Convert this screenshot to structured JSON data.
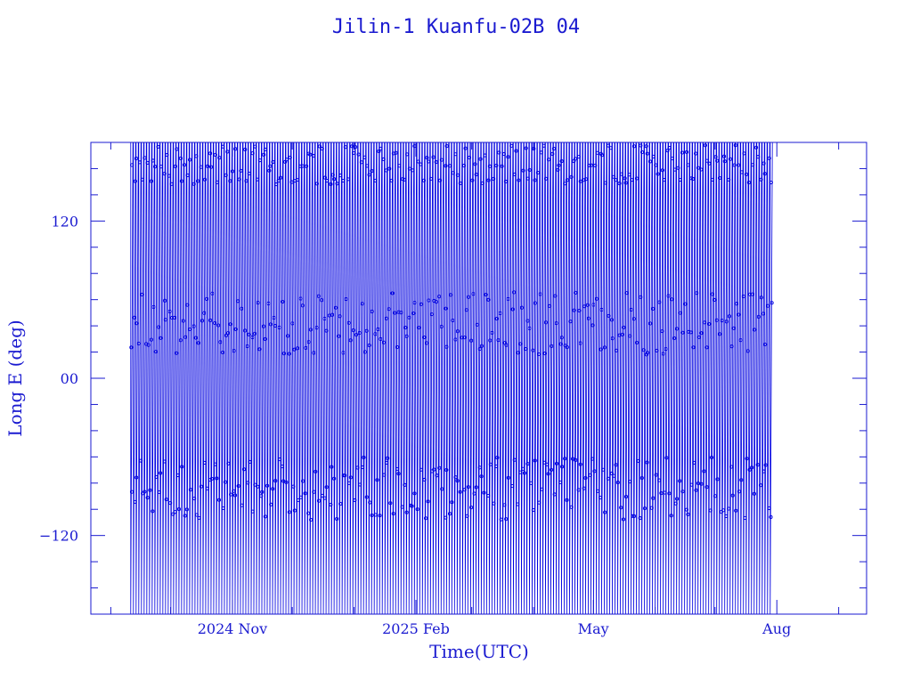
{
  "chart_data": {
    "type": "line",
    "title": "Jilin-1 Kuanfu-02B 04",
    "xlabel": "Time(UTC)",
    "ylabel": "Long E (deg)",
    "x_range": [
      "2024-08-22",
      "2025-09-15"
    ],
    "ylim": [
      -180,
      180
    ],
    "x_ticks": [
      {
        "date": "2024-11-01",
        "label": "2024 Nov"
      },
      {
        "date": "2025-02-01",
        "label": "2025 Feb"
      },
      {
        "date": "2025-05-01",
        "label": "May"
      },
      {
        "date": "2025-08-01",
        "label": "Aug"
      }
    ],
    "y_ticks": [
      {
        "value": 120,
        "label": "120"
      },
      {
        "value": 0,
        "label": "00"
      },
      {
        "value": -120,
        "label": "−120"
      }
    ],
    "series": [
      {
        "x_start": "2024-09-11",
        "x_end": "2025-07-30",
        "y_min": -180,
        "y_max": 180,
        "pattern": "sub-satellite longitude wrapping from 180 to -180 each orbit, drifting eastward",
        "color": "#0000e0"
      }
    ],
    "grid": false,
    "legend": "none"
  }
}
